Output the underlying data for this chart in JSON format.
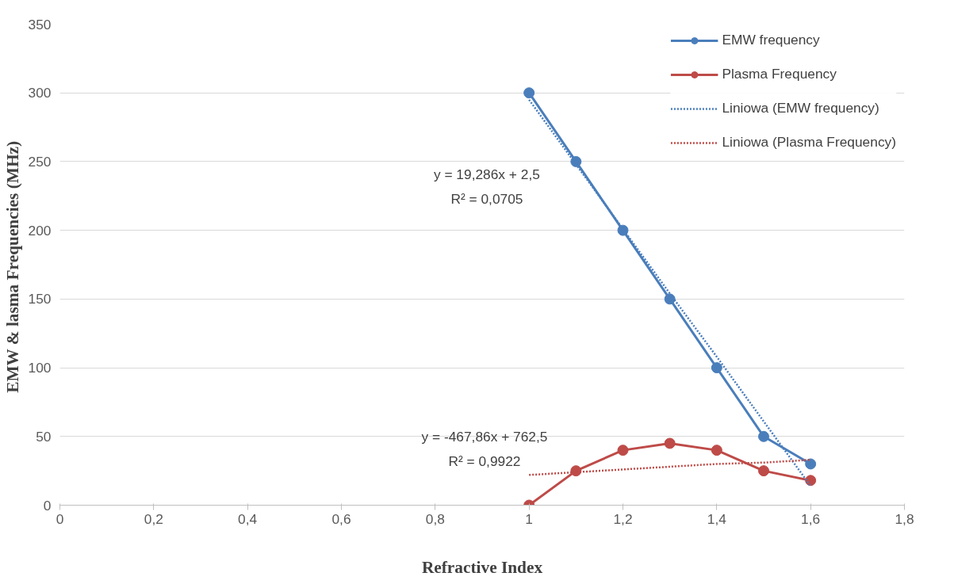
{
  "chart_data": {
    "type": "line",
    "xlabel": "Refractive Index",
    "ylabel": "EMW  & lasma Frequencies (MHz)",
    "x": [
      1,
      1.1,
      1.2,
      1.3,
      1.4,
      1.5,
      1.6
    ],
    "series": [
      {
        "name": "EMW frequency",
        "color": "#4a7ebb",
        "values": [
          300,
          250,
          200,
          150,
          100,
          50,
          30
        ],
        "marker": "circle",
        "line_style": "solid"
      },
      {
        "name": "Plasma Frequency",
        "color": "#be4b48",
        "values": [
          0,
          25,
          40,
          45,
          40,
          25,
          18
        ],
        "marker": "circle",
        "line_style": "solid"
      },
      {
        "name": "Liniowa (EMW frequency)",
        "color": "#4a7ebb",
        "type": "line",
        "values": [
          295,
          248,
          201,
          154,
          108,
          61,
          14
        ],
        "marker": "none",
        "line_style": "dotted"
      },
      {
        "name": "Liniowa (Plasma Frequency)",
        "color": "#be4b48",
        "type": "line",
        "values": [
          22,
          24,
          26,
          28,
          30,
          31,
          33
        ],
        "marker": "none",
        "line_style": "dotted"
      }
    ],
    "xlim": [
      0,
      1.8
    ],
    "xticks": [
      0,
      {
        "value": 0.2,
        "label": "0,2"
      },
      {
        "value": 0.4,
        "label": "0,4"
      },
      {
        "value": 0.6,
        "label": "0,6"
      },
      {
        "value": 0.8,
        "label": "0,8"
      },
      1,
      {
        "value": 1.2,
        "label": "1,2"
      },
      {
        "value": 1.4,
        "label": "1,4"
      },
      {
        "value": 1.6,
        "label": "1,6"
      },
      {
        "value": 1.8,
        "label": "1,8"
      }
    ],
    "ylim": [
      0,
      350
    ],
    "yticks": [
      0,
      50,
      100,
      150,
      200,
      250,
      300,
      350
    ],
    "annotations": [
      "y = 19,286x + 2,5",
      "R² = 0,0705",
      "y = -467,86x + 762,5",
      "R² = 0,9922"
    ],
    "grid": "y",
    "legend": "top right"
  }
}
